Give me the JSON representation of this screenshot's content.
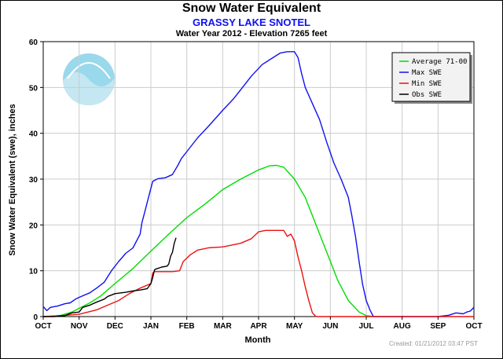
{
  "chart_data": {
    "type": "line",
    "title": "Snow Water Equivalent",
    "subtitle": "GRASSY LAKE SNOTEL",
    "subtitle2": "Water Year 2012 -  Elevation 7265 feet",
    "xlabel": "Month",
    "ylabel": "Snow Water Equivalent (swe),  inches",
    "x_tick_labels": [
      "OCT",
      "NOV",
      "DEC",
      "JAN",
      "FEB",
      "MAR",
      "APR",
      "MAY",
      "JUN",
      "JUL",
      "AUG",
      "SEP",
      "OCT"
    ],
    "y_ticks": [
      0,
      10,
      20,
      30,
      40,
      50,
      60
    ],
    "xlim": [
      0,
      12
    ],
    "ylim": [
      0,
      60
    ],
    "grid": true,
    "legend_position": "top-right",
    "footer": "Created: 01/21/2012 03:47 PST",
    "series": [
      {
        "name": "Average 71-00",
        "color": "#00dd00",
        "points": [
          [
            0,
            0
          ],
          [
            0.3,
            0.1
          ],
          [
            0.5,
            0.3
          ],
          [
            0.8,
            1.0
          ],
          [
            1.0,
            1.8
          ],
          [
            1.3,
            3.0
          ],
          [
            1.6,
            4.5
          ],
          [
            2.0,
            7.2
          ],
          [
            2.5,
            10.5
          ],
          [
            3.0,
            14.3
          ],
          [
            3.5,
            18.0
          ],
          [
            4.0,
            21.6
          ],
          [
            4.5,
            24.5
          ],
          [
            5.0,
            27.7
          ],
          [
            5.5,
            30.0
          ],
          [
            6.0,
            32.0
          ],
          [
            6.3,
            32.9
          ],
          [
            6.5,
            33.0
          ],
          [
            6.7,
            32.6
          ],
          [
            7.0,
            30.0
          ],
          [
            7.3,
            26.0
          ],
          [
            7.6,
            20.0
          ],
          [
            7.9,
            14.0
          ],
          [
            8.2,
            8.0
          ],
          [
            8.5,
            3.5
          ],
          [
            8.8,
            1.0
          ],
          [
            9.0,
            0.2
          ],
          [
            9.2,
            0
          ]
        ]
      },
      {
        "name": "Max SWE",
        "color": "#1111ee",
        "points": [
          [
            0,
            2.2
          ],
          [
            0.1,
            1.3
          ],
          [
            0.2,
            2.0
          ],
          [
            0.4,
            2.3
          ],
          [
            0.6,
            2.8
          ],
          [
            0.75,
            3.0
          ],
          [
            0.9,
            3.8
          ],
          [
            1.0,
            4.2
          ],
          [
            1.3,
            5.2
          ],
          [
            1.5,
            6.3
          ],
          [
            1.7,
            7.5
          ],
          [
            1.9,
            10.0
          ],
          [
            2.1,
            12.0
          ],
          [
            2.3,
            13.8
          ],
          [
            2.5,
            15.0
          ],
          [
            2.6,
            16.5
          ],
          [
            2.7,
            18.0
          ],
          [
            2.75,
            20.5
          ],
          [
            2.85,
            23.5
          ],
          [
            2.95,
            26.5
          ],
          [
            3.05,
            29.5
          ],
          [
            3.2,
            30.1
          ],
          [
            3.4,
            30.3
          ],
          [
            3.6,
            31.0
          ],
          [
            3.75,
            33.0
          ],
          [
            3.85,
            34.5
          ],
          [
            4.0,
            36.0
          ],
          [
            4.3,
            39.0
          ],
          [
            4.6,
            41.5
          ],
          [
            5.0,
            45.0
          ],
          [
            5.3,
            47.5
          ],
          [
            5.5,
            49.5
          ],
          [
            5.8,
            52.5
          ],
          [
            6.1,
            55.0
          ],
          [
            6.4,
            56.5
          ],
          [
            6.6,
            57.5
          ],
          [
            6.8,
            57.8
          ],
          [
            7.0,
            57.8
          ],
          [
            7.1,
            56.5
          ],
          [
            7.2,
            53.0
          ],
          [
            7.3,
            50.0
          ],
          [
            7.5,
            46.5
          ],
          [
            7.7,
            43.0
          ],
          [
            7.9,
            38.0
          ],
          [
            8.1,
            33.5
          ],
          [
            8.3,
            30.0
          ],
          [
            8.5,
            26.0
          ],
          [
            8.6,
            22.0
          ],
          [
            8.7,
            17.5
          ],
          [
            8.8,
            12.0
          ],
          [
            8.9,
            7.0
          ],
          [
            9.0,
            3.5
          ],
          [
            9.1,
            1.5
          ],
          [
            9.2,
            0
          ],
          [
            11.0,
            0
          ],
          [
            11.3,
            0.3
          ],
          [
            11.5,
            0.8
          ],
          [
            11.7,
            0.6
          ],
          [
            11.8,
            1.0
          ],
          [
            11.9,
            1.2
          ],
          [
            12.0,
            2.0
          ]
        ]
      },
      {
        "name": "Min SWE",
        "color": "#ee1111",
        "points": [
          [
            0,
            0
          ],
          [
            0.5,
            0.2
          ],
          [
            1.0,
            0.5
          ],
          [
            1.5,
            1.5
          ],
          [
            1.8,
            2.5
          ],
          [
            2.1,
            3.5
          ],
          [
            2.4,
            5.0
          ],
          [
            2.7,
            6.2
          ],
          [
            3.0,
            7.2
          ],
          [
            3.05,
            9.5
          ],
          [
            3.1,
            9.8
          ],
          [
            3.6,
            9.8
          ],
          [
            3.8,
            10.0
          ],
          [
            3.9,
            12.0
          ],
          [
            4.1,
            13.5
          ],
          [
            4.3,
            14.5
          ],
          [
            4.6,
            15.0
          ],
          [
            5.0,
            15.2
          ],
          [
            5.5,
            16.0
          ],
          [
            5.8,
            17.0
          ],
          [
            6.0,
            18.5
          ],
          [
            6.2,
            18.8
          ],
          [
            6.5,
            18.8
          ],
          [
            6.7,
            18.8
          ],
          [
            6.8,
            17.5
          ],
          [
            6.9,
            18.0
          ],
          [
            7.0,
            16.5
          ],
          [
            7.1,
            13.0
          ],
          [
            7.2,
            10.0
          ],
          [
            7.3,
            6.5
          ],
          [
            7.4,
            3.5
          ],
          [
            7.5,
            0.8
          ],
          [
            7.6,
            0
          ],
          [
            12.0,
            0
          ]
        ]
      },
      {
        "name": "Obs SWE",
        "color": "#000000",
        "points": [
          [
            0,
            0
          ],
          [
            0.3,
            0
          ],
          [
            0.6,
            0.2
          ],
          [
            0.8,
            0.8
          ],
          [
            1.0,
            1.0
          ],
          [
            1.1,
            2.0
          ],
          [
            1.3,
            2.5
          ],
          [
            1.5,
            3.2
          ],
          [
            1.7,
            3.8
          ],
          [
            1.8,
            4.4
          ],
          [
            2.0,
            5.0
          ],
          [
            2.3,
            5.3
          ],
          [
            2.5,
            5.6
          ],
          [
            2.7,
            5.8
          ],
          [
            2.9,
            6.1
          ],
          [
            3.0,
            7.2
          ],
          [
            3.05,
            8.5
          ],
          [
            3.1,
            10.2
          ],
          [
            3.15,
            10.4
          ],
          [
            3.3,
            10.8
          ],
          [
            3.45,
            11.0
          ],
          [
            3.5,
            11.5
          ],
          [
            3.55,
            13.2
          ],
          [
            3.6,
            14.0
          ],
          [
            3.65,
            16.0
          ],
          [
            3.7,
            17.2
          ]
        ]
      }
    ]
  }
}
